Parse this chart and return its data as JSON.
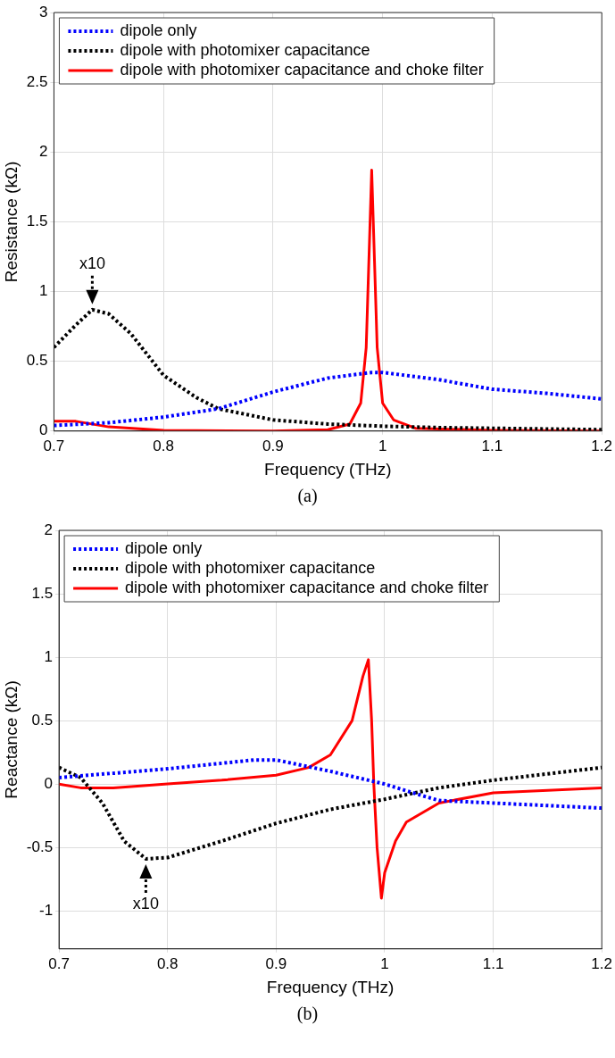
{
  "chart_data": [
    {
      "type": "line",
      "xlabel": "Frequency (THz)",
      "ylabel": "Resistance (kΩ)",
      "xlim": [
        0.7,
        1.2
      ],
      "xticks": [
        0.7,
        0.8,
        0.9,
        1,
        1.1,
        1.2
      ],
      "ylim": [
        0,
        3
      ],
      "yticks": [
        0,
        0.5,
        1,
        1.5,
        2,
        2.5,
        3
      ],
      "grid": true,
      "legend": "top left",
      "marker": "none",
      "series": [
        {
          "name": "dipole only",
          "color": "#0000ff",
          "line_style": "dotted",
          "x": [
            0.7,
            0.75,
            0.8,
            0.85,
            0.9,
            0.95,
            0.99,
            1.0,
            1.05,
            1.1,
            1.15,
            1.2
          ],
          "values": [
            0.04,
            0.06,
            0.1,
            0.16,
            0.28,
            0.38,
            0.42,
            0.42,
            0.37,
            0.3,
            0.27,
            0.23
          ]
        },
        {
          "name": "dipole with photomixer capacitance",
          "color": "#000000",
          "line_style": "dotted",
          "x": [
            0.7,
            0.72,
            0.735,
            0.75,
            0.77,
            0.8,
            0.83,
            0.85,
            0.9,
            0.95,
            1.0,
            1.05,
            1.1,
            1.2
          ],
          "values": [
            0.6,
            0.76,
            0.87,
            0.84,
            0.7,
            0.4,
            0.24,
            0.16,
            0.08,
            0.05,
            0.035,
            0.025,
            0.02,
            0.01
          ]
        },
        {
          "name": "dipole with photomixer capacitance and choke filter",
          "color": "#ff0000",
          "line_style": "solid",
          "x": [
            0.7,
            0.72,
            0.75,
            0.8,
            0.9,
            0.95,
            0.97,
            0.98,
            0.985,
            0.99,
            0.995,
            1.0,
            1.01,
            1.03,
            1.1,
            1.2
          ],
          "values": [
            0.07,
            0.07,
            0.03,
            0.005,
            0,
            0.01,
            0.05,
            0.2,
            0.6,
            1.87,
            0.6,
            0.2,
            0.08,
            0.02,
            0.005,
            0
          ]
        }
      ],
      "annotations": [
        {
          "text": "x10",
          "x": 0.735,
          "y": 0.87
        },
        "(a)"
      ]
    },
    {
      "type": "line",
      "xlabel": "Frequency (THz)",
      "ylabel": "Reactance (kΩ)",
      "xlim": [
        0.7,
        1.2
      ],
      "xticks": [
        0.7,
        0.8,
        0.9,
        1,
        1.1,
        1.2
      ],
      "ylim": [
        -1.3,
        2
      ],
      "yticks": [
        -1,
        -0.5,
        0,
        0.5,
        1,
        1.5,
        2
      ],
      "grid": true,
      "legend": "top left",
      "marker": "none",
      "series": [
        {
          "name": "dipole only",
          "color": "#0000ff",
          "line_style": "dotted",
          "x": [
            0.7,
            0.8,
            0.88,
            0.9,
            0.95,
            1.0,
            1.03,
            1.05,
            1.1,
            1.2
          ],
          "values": [
            0.05,
            0.12,
            0.19,
            0.19,
            0.1,
            0.0,
            -0.08,
            -0.13,
            -0.15,
            -0.19
          ]
        },
        {
          "name": "dipole with photomixer capacitance",
          "color": "#000000",
          "line_style": "dotted",
          "x": [
            0.7,
            0.72,
            0.74,
            0.76,
            0.78,
            0.8,
            0.85,
            0.9,
            0.95,
            1.0,
            1.05,
            1.1,
            1.15,
            1.2
          ],
          "values": [
            0.13,
            0.05,
            -0.15,
            -0.45,
            -0.59,
            -0.58,
            -0.45,
            -0.31,
            -0.2,
            -0.12,
            -0.03,
            0.03,
            0.08,
            0.13
          ]
        },
        {
          "name": "dipole with photomixer capacitance and choke filter",
          "color": "#ff0000",
          "line_style": "solid",
          "x": [
            0.7,
            0.72,
            0.75,
            0.8,
            0.85,
            0.9,
            0.93,
            0.95,
            0.97,
            0.98,
            0.985,
            0.988,
            0.99,
            0.993,
            0.997,
            1.0,
            1.01,
            1.02,
            1.05,
            1.1,
            1.2
          ],
          "values": [
            0.0,
            -0.03,
            -0.03,
            0.0,
            0.03,
            0.07,
            0.13,
            0.23,
            0.5,
            0.85,
            0.98,
            0.5,
            0.0,
            -0.5,
            -0.9,
            -0.7,
            -0.45,
            -0.3,
            -0.15,
            -0.07,
            -0.03
          ]
        }
      ],
      "annotations": [
        {
          "text": "x10",
          "x": 0.78,
          "y": -0.59
        },
        "(b)"
      ]
    }
  ]
}
